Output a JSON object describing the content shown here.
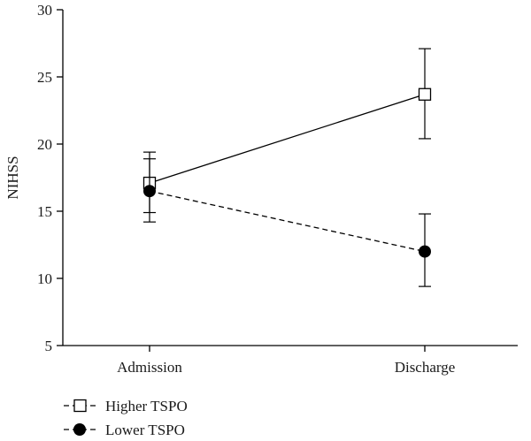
{
  "chart_data": {
    "type": "line",
    "title": "",
    "xlabel": "",
    "ylabel": "NIHSS",
    "categories": [
      "Admission",
      "Discharge"
    ],
    "ylim": [
      5,
      30
    ],
    "yticks": [
      5,
      10,
      15,
      20,
      25,
      30
    ],
    "grid": false,
    "legend_position": "bottom-left",
    "series": [
      {
        "name": "Higher TSPO",
        "values": [
          17.1,
          23.7
        ],
        "error_low": [
          14.9,
          20.4
        ],
        "error_high": [
          19.4,
          27.1
        ],
        "marker": "open-square",
        "line_style": "solid",
        "color": "#000000"
      },
      {
        "name": "Lower TSPO",
        "values": [
          16.5,
          12.0
        ],
        "error_low": [
          14.2,
          9.4
        ],
        "error_high": [
          18.9,
          14.8
        ],
        "marker": "filled-circle",
        "line_style": "dashed",
        "color": "#000000"
      }
    ]
  }
}
